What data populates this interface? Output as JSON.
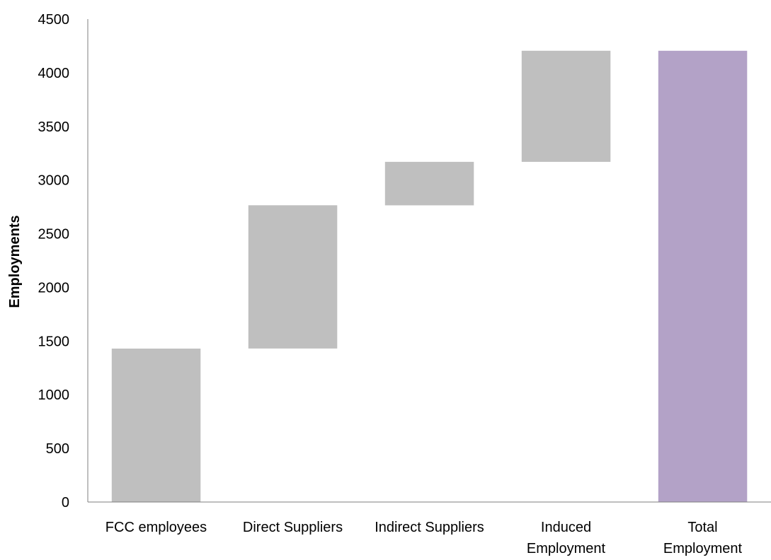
{
  "chart_data": {
    "type": "bar",
    "subtype": "waterfall",
    "title": "",
    "xlabel": "",
    "ylabel": "Employments",
    "ylim": [
      0,
      4500
    ],
    "yticks": [
      0,
      500,
      1000,
      1500,
      2000,
      2500,
      3000,
      3500,
      4000,
      4500
    ],
    "grid": false,
    "legend": "none",
    "categories": [
      [
        "FCC employees"
      ],
      [
        "Direct Suppliers"
      ],
      [
        "Indirect Suppliers"
      ],
      [
        "Induced",
        "Employment"
      ],
      [
        "Total",
        "Employment"
      ]
    ],
    "bars": [
      {
        "category": "FCC employees",
        "start": 0,
        "end": 1430,
        "value": 1430,
        "color": "#bfbfbf"
      },
      {
        "category": "Direct Suppliers",
        "start": 1430,
        "end": 2765,
        "value": 1335,
        "color": "#bfbfbf"
      },
      {
        "category": "Indirect Suppliers",
        "start": 2765,
        "end": 3170,
        "value": 405,
        "color": "#bfbfbf"
      },
      {
        "category": "Induced Employment",
        "start": 3170,
        "end": 4205,
        "value": 1035,
        "color": "#bfbfbf"
      },
      {
        "category": "Total Employment",
        "start": 0,
        "end": 4205,
        "value": 4205,
        "color": "#b3a2c7"
      }
    ],
    "colors": {
      "step": "#bfbfbf",
      "total": "#b3a2c7",
      "axis": "#7f7f7f",
      "text": "#000000"
    }
  }
}
